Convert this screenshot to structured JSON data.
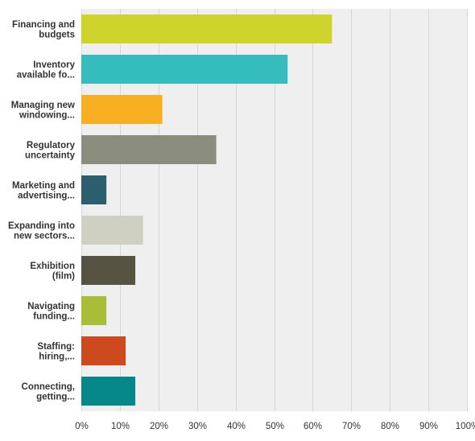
{
  "chart_data": {
    "type": "bar",
    "orientation": "horizontal",
    "categories": [
      [
        "Financing and",
        "budgets"
      ],
      [
        "Inventory",
        "available fo..."
      ],
      [
        "Managing new",
        "windowing..."
      ],
      [
        "Regulatory",
        "uncertainty"
      ],
      [
        "Marketing and",
        "advertising..."
      ],
      [
        "Expanding into",
        "new sectors..."
      ],
      [
        "Exhibition",
        "(film)"
      ],
      [
        "Navigating",
        "funding..."
      ],
      [
        "Staffing:",
        "hiring,..."
      ],
      [
        "Connecting,",
        "getting..."
      ]
    ],
    "values": [
      65,
      53.5,
      21,
      35,
      6.5,
      16,
      14,
      6.5,
      11.5,
      14
    ],
    "colors": [
      "#cfd42c",
      "#35bdbd",
      "#f7ae20",
      "#8b8d7d",
      "#2c5f6e",
      "#d0d0c2",
      "#575343",
      "#a9bd38",
      "#cc4a1e",
      "#068789"
    ],
    "xlim": [
      0,
      100
    ],
    "ticks": [
      "0%",
      "10%",
      "20%",
      "30%",
      "40%",
      "50%",
      "60%",
      "70%",
      "80%",
      "90%",
      "100%"
    ],
    "grid": true,
    "title": "",
    "xlabel": "",
    "ylabel": ""
  }
}
